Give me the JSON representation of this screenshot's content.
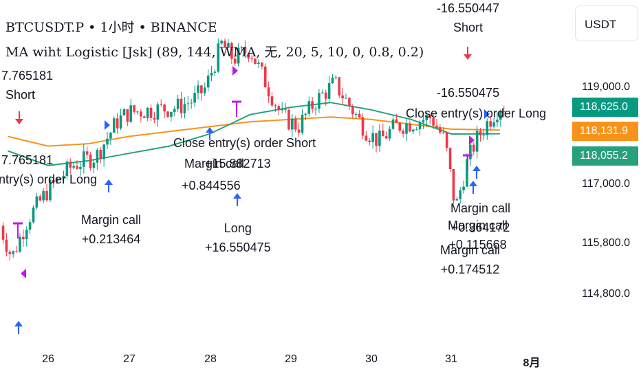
{
  "header": {
    "symbol_line": "BTCUSDT.P • 1小时 • BINANCE",
    "indicator_line": "MA wiht Logistic [Jsk] (89, 144, WMA, 无, 20, 5, 10, 0, 0.8, 0.2)"
  },
  "currency_button": "USDT",
  "price_labels": [
    "119,000.0",
    "117,000.0",
    "115,800.0",
    "114,800.0"
  ],
  "badges": [
    {
      "value": "118,625.0",
      "color": "#089981"
    },
    {
      "value": "118,131.9",
      "color": "#f7931a"
    },
    {
      "value": "118,055.2",
      "color": "#26a17b"
    }
  ],
  "date_labels": [
    "26",
    "27",
    "28",
    "29",
    "30",
    "31",
    "8月"
  ],
  "annotations": [
    {
      "line1": "7.765181",
      "line2": "Short"
    },
    {
      "line1": "7.765181",
      "line2": "ntry(s) order Long"
    },
    {
      "line1": "Margin call",
      "line2": "+0.213464"
    },
    {
      "line1": "Close entry(s) order Short",
      "line2": ""
    },
    {
      "line1": "Margin call",
      "line2": "+15.882713"
    },
    {
      "line1": "+0.844556",
      "line2": ""
    },
    {
      "line1": "Long",
      "line2": "+16.550475"
    },
    {
      "line1": "-16.550447",
      "line2": "Short"
    },
    {
      "line1": "-16.550475",
      "line2": ""
    },
    {
      "line1": "Close entry(s) order Long",
      "line2": ""
    },
    {
      "line1": "Margin call",
      "line2": "+0.364172"
    },
    {
      "line1": "Margin call",
      "line2": "+0.115668"
    },
    {
      "line1": "Margin call",
      "line2": "+0.174512"
    }
  ],
  "chart_data": {
    "type": "candlestick",
    "title": "BTCUSDT.P • 1小时 • BINANCE",
    "x_tick_labels": [
      "26",
      "27",
      "28",
      "29",
      "30",
      "31",
      "8月"
    ],
    "y_tick_labels": [
      "119,000.0",
      "117,000.0",
      "115,800.0",
      "114,800.0"
    ],
    "ylim": [
      114200,
      120400
    ],
    "grid": false,
    "up_color": "#089981",
    "down_color": "#f23645",
    "anchors_day_close": [
      [
        25.0,
        117700
      ],
      [
        25.3,
        116600
      ],
      [
        25.55,
        115500
      ],
      [
        25.75,
        116300
      ],
      [
        26.0,
        116900
      ],
      [
        26.3,
        117400
      ],
      [
        26.6,
        117600
      ],
      [
        26.85,
        118300
      ],
      [
        27.0,
        118500
      ],
      [
        27.3,
        118550
      ],
      [
        27.6,
        118600
      ],
      [
        27.8,
        118750
      ],
      [
        27.95,
        119000
      ],
      [
        28.15,
        119900
      ],
      [
        28.3,
        119600
      ],
      [
        28.5,
        119800
      ],
      [
        28.7,
        119100
      ],
      [
        28.9,
        118400
      ],
      [
        29.1,
        118200
      ],
      [
        29.3,
        118700
      ],
      [
        29.55,
        119100
      ],
      [
        29.75,
        118600
      ],
      [
        29.95,
        118100
      ],
      [
        30.1,
        117900
      ],
      [
        30.3,
        118200
      ],
      [
        30.55,
        118300
      ],
      [
        30.75,
        118400
      ],
      [
        30.92,
        117900
      ],
      [
        31.05,
        116500
      ],
      [
        31.2,
        117500
      ],
      [
        31.3,
        117900
      ],
      [
        31.45,
        118300
      ],
      [
        31.6,
        118625
      ]
    ],
    "series": [
      {
        "type": "ma",
        "color": "#f7931a",
        "points": [
          [
            25.0,
            118300
          ],
          [
            25.5,
            118000
          ],
          [
            26.0,
            117800
          ],
          [
            26.5,
            117850
          ],
          [
            27.0,
            118000
          ],
          [
            27.5,
            118100
          ],
          [
            28.0,
            118200
          ],
          [
            28.5,
            118300
          ],
          [
            29.0,
            118350
          ],
          [
            29.5,
            118400
          ],
          [
            30.0,
            118350
          ],
          [
            30.5,
            118250
          ],
          [
            31.0,
            118150
          ],
          [
            31.6,
            118131.9
          ]
        ]
      },
      {
        "type": "ma",
        "color": "#26a17b",
        "points": [
          [
            25.0,
            118400
          ],
          [
            25.5,
            117700
          ],
          [
            26.0,
            117400
          ],
          [
            26.5,
            117500
          ],
          [
            27.0,
            117650
          ],
          [
            27.5,
            117800
          ],
          [
            28.0,
            118050
          ],
          [
            28.5,
            118450
          ],
          [
            29.0,
            118600
          ],
          [
            29.5,
            118700
          ],
          [
            30.0,
            118550
          ],
          [
            30.5,
            118350
          ],
          [
            31.0,
            118050
          ],
          [
            31.6,
            118055.2
          ]
        ]
      }
    ],
    "last_close": 118625.0
  }
}
